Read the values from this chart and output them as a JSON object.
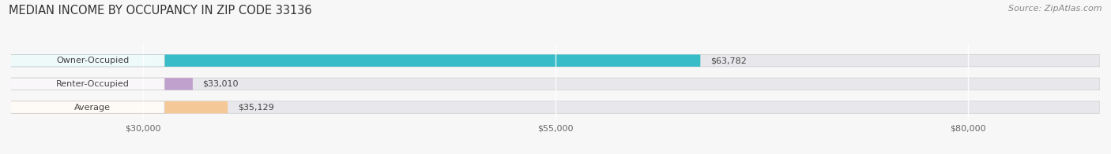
{
  "title": "MEDIAN INCOME BY OCCUPANCY IN ZIP CODE 33136",
  "source": "Source: ZipAtlas.com",
  "categories": [
    "Owner-Occupied",
    "Renter-Occupied",
    "Average"
  ],
  "values": [
    63782,
    33010,
    35129
  ],
  "bar_colors": [
    "#38bcc8",
    "#c0a0cc",
    "#f5c898"
  ],
  "bar_bg_color": "#e8e8ec",
  "value_labels": [
    "$63,782",
    "$33,010",
    "$35,129"
  ],
  "xticks": [
    30000,
    55000,
    80000
  ],
  "xtick_labels": [
    "$30,000",
    "$55,000",
    "$80,000"
  ],
  "xmin": 22000,
  "xmax": 88000,
  "title_fontsize": 10.5,
  "source_fontsize": 8,
  "label_fontsize": 8,
  "bar_label_fontsize": 8,
  "figsize": [
    14.06,
    1.96
  ],
  "dpi": 100,
  "fig_bg": "#f7f7f7"
}
